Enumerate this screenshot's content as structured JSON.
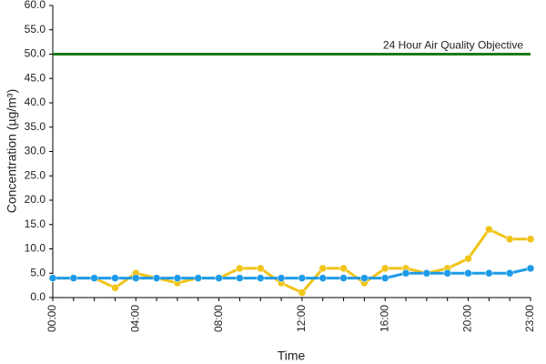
{
  "chart_data": {
    "type": "line",
    "xlabel": "Time",
    "ylabel": "Concentration (µg/m³)",
    "categories": [
      "00:00",
      null,
      null,
      null,
      "04:00",
      null,
      null,
      null,
      "08:00",
      null,
      null,
      null,
      "12:00",
      null,
      null,
      null,
      "16:00",
      null,
      null,
      null,
      "20:00",
      null,
      null,
      "23:00"
    ],
    "series": [
      {
        "color": "#f0c419",
        "values": [
          4,
          4,
          4,
          2,
          5,
          4,
          3,
          4,
          4,
          6,
          6,
          3,
          1,
          6,
          6,
          3,
          6,
          6,
          5,
          6,
          8,
          14,
          12,
          12
        ]
      },
      {
        "color": "#1e9be8",
        "values": [
          4,
          4,
          4,
          4,
          4,
          4,
          4,
          4,
          4,
          4,
          4,
          4,
          4,
          4,
          4,
          4,
          4,
          5,
          5,
          5,
          5,
          5,
          5,
          6
        ]
      }
    ],
    "reference_line": {
      "value": 50,
      "label": "24 Hour Air Quality Objective",
      "color": "#1a7a1a"
    },
    "ylim": [
      0,
      60
    ],
    "yticks": [
      {
        "value": 0,
        "label": "0.0"
      },
      {
        "value": 5,
        "label": "5.0"
      },
      {
        "value": 10,
        "label": "10.0"
      },
      {
        "value": 15,
        "label": "15.0"
      },
      {
        "value": 20,
        "label": "20.0"
      },
      {
        "value": 25,
        "label": "25.0"
      },
      {
        "value": 30,
        "label": "30.0"
      },
      {
        "value": 35,
        "label": "35.0"
      },
      {
        "value": 40,
        "label": "40.0"
      },
      {
        "value": 45,
        "label": "45.0"
      },
      {
        "value": 50,
        "label": "50.0"
      },
      {
        "value": 55,
        "label": "55.0"
      },
      {
        "value": 60,
        "label": "60.0"
      }
    ],
    "grid": false
  }
}
